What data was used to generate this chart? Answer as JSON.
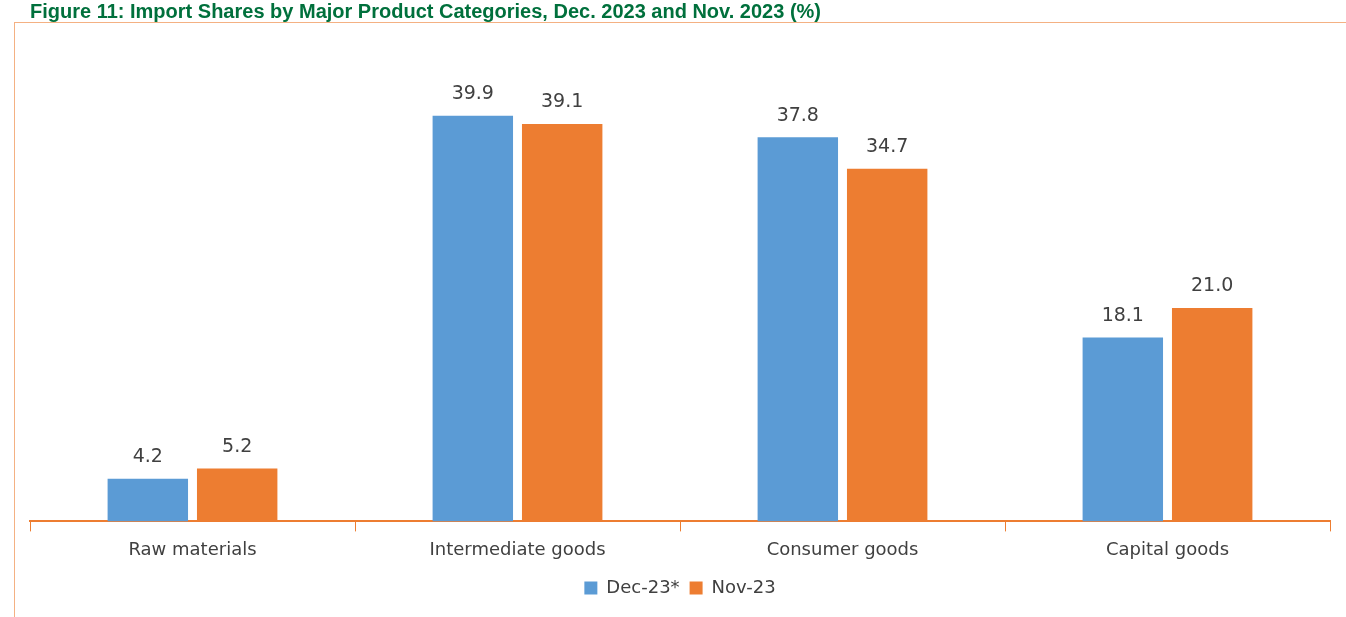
{
  "chart_data": {
    "type": "bar",
    "title": "Figure 11: Import Shares by Major Product Categories, Dec. 2023 and Nov. 2023 (%)",
    "categories": [
      "Raw materials",
      "Intermediate goods",
      "Consumer goods",
      "Capital goods"
    ],
    "series": [
      {
        "name": "Dec-23*",
        "color": "#5b9bd5",
        "values": [
          4.2,
          39.9,
          37.8,
          18.1
        ],
        "value_labels": [
          "4.2",
          "39.9",
          "37.8",
          "18.1"
        ]
      },
      {
        "name": "Nov-23",
        "color": "#ed7d31",
        "values": [
          5.2,
          39.1,
          34.7,
          21.0
        ],
        "value_labels": [
          "5.2",
          "39.1",
          "34.7",
          "21.0"
        ]
      }
    ],
    "legend": "bottom",
    "grid": false
  }
}
